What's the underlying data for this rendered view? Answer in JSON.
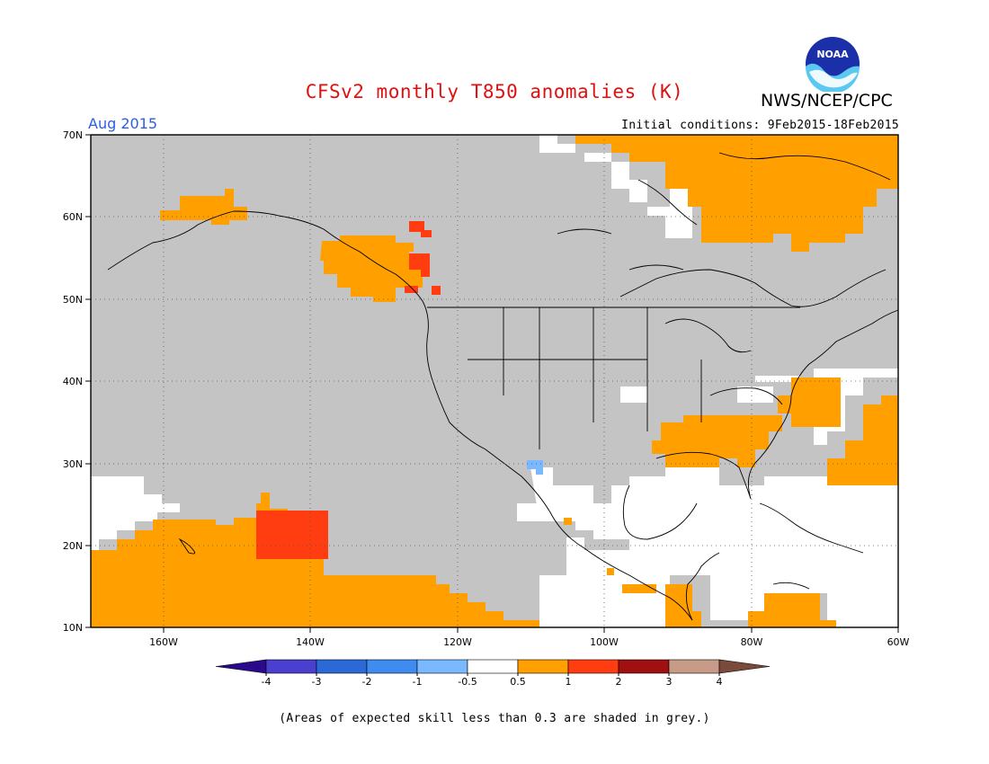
{
  "title": "CFSv2 monthly T850 anomalies (K)",
  "organization": "NWS/NCEP/CPC",
  "logo_text": "NOAA",
  "valid_month": "Aug 2015",
  "initial_conditions": "Initial conditions: 9Feb2015-18Feb2015",
  "caption": "(Areas of expected skill less than 0.3 are shaded in grey.)",
  "map": {
    "lat_labels": [
      "70N",
      "60N",
      "50N",
      "40N",
      "30N",
      "20N",
      "10N"
    ],
    "lon_labels": [
      "160W",
      "140W",
      "120W",
      "100W",
      "80W",
      "60W"
    ],
    "colors": {
      "low_skill_grey": "#c4c4c4",
      "anom_0_5_to_1": "#ff9f00",
      "anom_1_to_2": "#ff3d10",
      "anom_neg_1_to_neg_0_5": "#7ab8ff"
    }
  },
  "colorbar": {
    "ticks": [
      "-4",
      "-3",
      "-2",
      "-1",
      "-0.5",
      "0.5",
      "1",
      "2",
      "3",
      "4"
    ],
    "colors": [
      "#2a0a8a",
      "#4a3fcf",
      "#2b6ad6",
      "#3f8cf0",
      "#7ab8ff",
      "#ffffff",
      "#ff9f00",
      "#ff3d10",
      "#a01010",
      "#c89a88",
      "#7a4a3a"
    ]
  }
}
